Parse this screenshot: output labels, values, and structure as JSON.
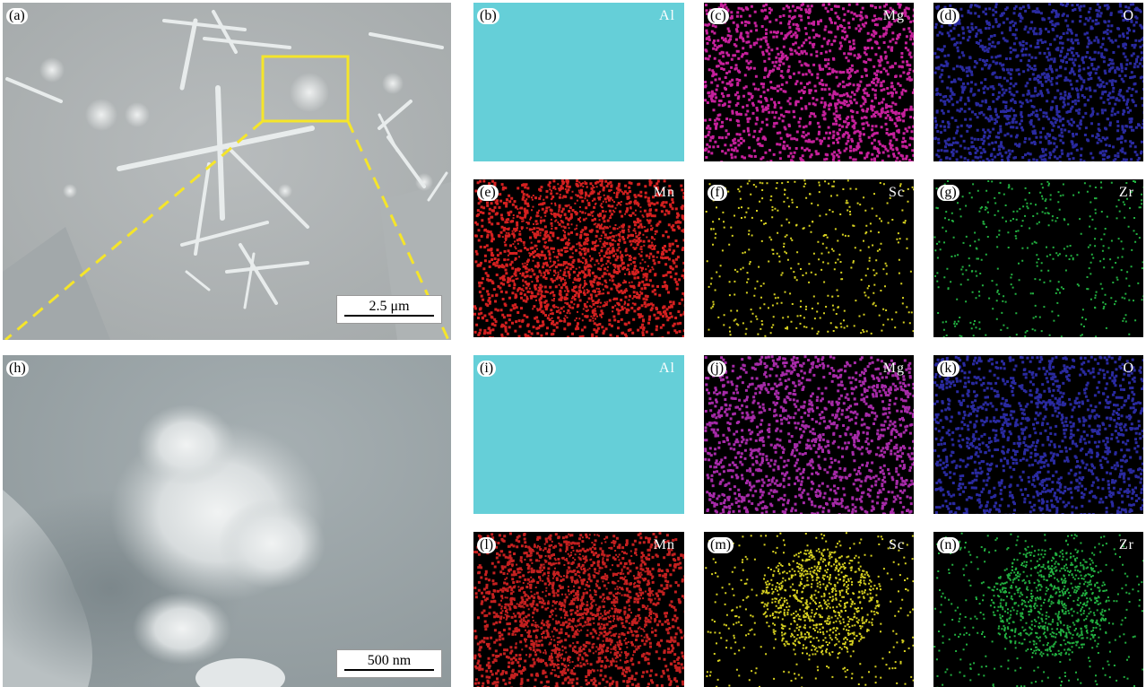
{
  "sem_top": {
    "letter": "(a)",
    "scale_label": "2.5 μm",
    "highlight_color": "#f5e52a"
  },
  "sem_bottom": {
    "letter": "(h)",
    "scale_label": "500 nm"
  },
  "maps": [
    {
      "letter": "(b)",
      "element": "Al",
      "color": "#65cfd8",
      "mode": "solid"
    },
    {
      "letter": "(c)",
      "element": "Mg",
      "color": "#c6209c",
      "mode": "dots"
    },
    {
      "letter": "(d)",
      "element": "O",
      "color": "#2a2aa0",
      "mode": "dots"
    },
    {
      "letter": "(e)",
      "element": "Mn",
      "color": "#d42020",
      "mode": "dots"
    },
    {
      "letter": "(f)",
      "element": "Sc",
      "color": "#d6d020",
      "mode": "sparse"
    },
    {
      "letter": "(g)",
      "element": "Zr",
      "color": "#22b040",
      "mode": "sparse"
    },
    {
      "letter": "(i)",
      "element": "Al",
      "color": "#65cfd8",
      "mode": "solid"
    },
    {
      "letter": "(j)",
      "element": "Mg",
      "color": "#a62aa8",
      "mode": "dots"
    },
    {
      "letter": "(k)",
      "element": "O",
      "color": "#2a2aa0",
      "mode": "dots"
    },
    {
      "letter": "(l)",
      "element": "Mn",
      "color": "#c42020",
      "mode": "dots"
    },
    {
      "letter": "(m)",
      "element": "Sc",
      "color": "#d6d020",
      "mode": "cluster"
    },
    {
      "letter": "(n)",
      "element": "Zr",
      "color": "#22b040",
      "mode": "cluster"
    }
  ]
}
